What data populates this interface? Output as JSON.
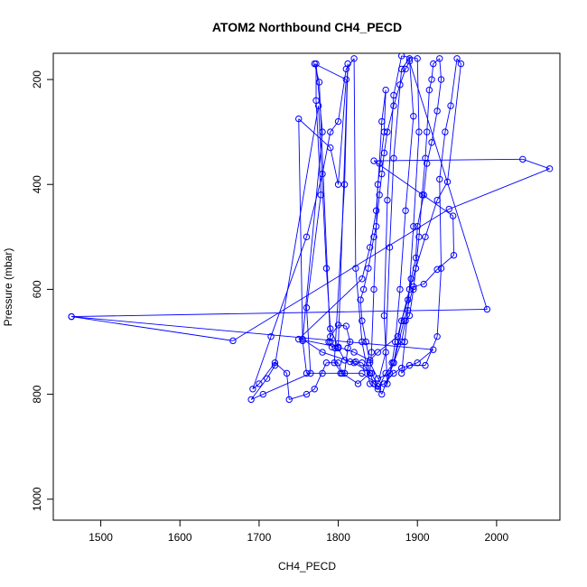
{
  "chart_data": {
    "type": "line",
    "title": "ATOM2 Northbound CH4_PECD",
    "xlabel": "CH4_PECD",
    "ylabel": "Pressure (mbar)",
    "xlim": [
      1440,
      2080
    ],
    "ylim": [
      1040,
      150
    ],
    "y_reversed": true,
    "grid": false,
    "x_ticks": [
      1500,
      1600,
      1700,
      1800,
      1900,
      2000
    ],
    "y_ticks": [
      200,
      400,
      600,
      800,
      1000
    ],
    "line_color": "#0000ff",
    "marker": "open-circle",
    "series": [
      {
        "values": [
          [
            1463,
            652
          ],
          [
            1667,
            698
          ],
          [
            1940,
            447
          ],
          [
            2067,
            370
          ],
          [
            2033,
            352
          ],
          [
            1845,
            355
          ],
          [
            1945,
            460
          ],
          [
            1946,
            535
          ],
          [
            1925,
            562
          ],
          [
            1908,
            590
          ],
          [
            1895,
            595
          ],
          [
            1883,
            660
          ],
          [
            1870,
            740
          ],
          [
            1855,
            800
          ],
          [
            1842,
            760
          ],
          [
            1820,
            740
          ],
          [
            1780,
            720
          ],
          [
            1755,
            695
          ],
          [
            1780,
            300
          ],
          [
            1772,
            170
          ],
          [
            1772,
            240
          ],
          [
            1778,
            420
          ],
          [
            1760,
            635
          ],
          [
            1765,
            760
          ],
          [
            1705,
            800
          ],
          [
            1690,
            810
          ],
          [
            1710,
            770
          ],
          [
            1720,
            745
          ],
          [
            1775,
            250
          ],
          [
            1785,
            560
          ],
          [
            1790,
            675
          ],
          [
            1800,
            710
          ],
          [
            1812,
            170
          ],
          [
            1808,
            400
          ],
          [
            1795,
            740
          ],
          [
            1805,
            760
          ],
          [
            1830,
            760
          ],
          [
            1850,
            780
          ],
          [
            1860,
            720
          ],
          [
            1865,
            520
          ],
          [
            1870,
            350
          ],
          [
            1880,
            180
          ],
          [
            1890,
            160
          ],
          [
            1895,
            270
          ],
          [
            1885,
            450
          ],
          [
            1878,
            600
          ],
          [
            1872,
            700
          ],
          [
            1868,
            740
          ],
          [
            1862,
            780
          ],
          [
            1858,
            650
          ],
          [
            1862,
            430
          ],
          [
            1870,
            230
          ],
          [
            1880,
            155
          ],
          [
            1900,
            160
          ],
          [
            1902,
            300
          ],
          [
            1895,
            480
          ],
          [
            1888,
            640
          ],
          [
            1884,
            700
          ],
          [
            1880,
            760
          ],
          [
            1890,
            745
          ],
          [
            1910,
            745
          ],
          [
            1925,
            690
          ],
          [
            1930,
            560
          ],
          [
            1928,
            390
          ],
          [
            1935,
            300
          ],
          [
            1942,
            250
          ],
          [
            1950,
            160
          ],
          [
            1955,
            170
          ],
          [
            1938,
            395
          ],
          [
            1925,
            430
          ],
          [
            1910,
            500
          ],
          [
            1890,
            600
          ],
          [
            1875,
            690
          ],
          [
            1850,
            720
          ],
          [
            1840,
            735
          ],
          [
            1820,
            720
          ],
          [
            1800,
            710
          ],
          [
            1750,
            695
          ],
          [
            1830,
            580
          ],
          [
            1840,
            520
          ],
          [
            1848,
            450
          ],
          [
            1852,
            360
          ],
          [
            1855,
            280
          ],
          [
            1860,
            220
          ],
          [
            1858,
            300
          ],
          [
            1850,
            400
          ],
          [
            1845,
            600
          ],
          [
            1842,
            720
          ],
          [
            1840,
            760
          ],
          [
            1825,
            780
          ],
          [
            1805,
            760
          ],
          [
            1800,
            740
          ],
          [
            1785,
            740
          ],
          [
            1770,
            790
          ],
          [
            1760,
            800
          ],
          [
            1738,
            810
          ],
          [
            1735,
            760
          ],
          [
            1720,
            740
          ],
          [
            1700,
            780
          ],
          [
            1692,
            790
          ],
          [
            1715,
            690
          ],
          [
            1760,
            500
          ],
          [
            1780,
            380
          ],
          [
            1790,
            300
          ],
          [
            1800,
            280
          ],
          [
            1810,
            180
          ],
          [
            1820,
            160
          ],
          [
            1822,
            560
          ],
          [
            1830,
            700
          ],
          [
            1840,
            780
          ],
          [
            1850,
            790
          ],
          [
            1860,
            760
          ],
          [
            1870,
            740
          ],
          [
            1880,
            700
          ],
          [
            1885,
            660
          ],
          [
            1890,
            650
          ],
          [
            1895,
            600
          ],
          [
            1898,
            560
          ],
          [
            1902,
            500
          ],
          [
            1906,
            420
          ],
          [
            1910,
            350
          ],
          [
            1912,
            300
          ],
          [
            1915,
            220
          ],
          [
            1918,
            200
          ],
          [
            1920,
            170
          ],
          [
            1928,
            160
          ],
          [
            1930,
            200
          ],
          [
            1925,
            260
          ],
          [
            1918,
            320
          ],
          [
            1912,
            360
          ],
          [
            1908,
            420
          ],
          [
            1900,
            480
          ],
          [
            1898,
            540
          ],
          [
            1892,
            580
          ],
          [
            1888,
            620
          ],
          [
            1880,
            660
          ],
          [
            1875,
            700
          ],
          [
            1870,
            740
          ],
          [
            1865,
            760
          ],
          [
            1850,
            770
          ],
          [
            1840,
            740
          ],
          [
            1835,
            700
          ],
          [
            1830,
            660
          ],
          [
            1828,
            620
          ],
          [
            1832,
            600
          ],
          [
            1838,
            560
          ],
          [
            1845,
            500
          ],
          [
            1848,
            480
          ],
          [
            1852,
            420
          ],
          [
            1855,
            380
          ],
          [
            1858,
            340
          ],
          [
            1862,
            300
          ],
          [
            1870,
            250
          ],
          [
            1878,
            210
          ],
          [
            1885,
            180
          ],
          [
            1890,
            165
          ],
          [
            1988,
            638
          ],
          [
            1463,
            652
          ],
          [
            1920,
            715
          ],
          [
            1900,
            740
          ],
          [
            1880,
            750
          ],
          [
            1870,
            760
          ],
          [
            1858,
            780
          ],
          [
            1850,
            785
          ],
          [
            1845,
            780
          ],
          [
            1840,
            760
          ],
          [
            1835,
            750
          ],
          [
            1830,
            740
          ],
          [
            1822,
            738
          ],
          [
            1815,
            738
          ],
          [
            1808,
            735
          ],
          [
            1800,
            712
          ],
          [
            1796,
            712
          ],
          [
            1792,
            710
          ],
          [
            1788,
            700
          ],
          [
            1790,
            690
          ],
          [
            1800,
            668
          ],
          [
            1810,
            670
          ],
          [
            1815,
            700
          ],
          [
            1812,
            712
          ],
          [
            1808,
            760
          ],
          [
            1803,
            760
          ],
          [
            1780,
            760
          ],
          [
            1760,
            760
          ],
          [
            1755,
            698
          ],
          [
            1750,
            275
          ],
          [
            1790,
            330
          ],
          [
            1800,
            400
          ],
          [
            1810,
            200
          ],
          [
            1770,
            170
          ],
          [
            1776,
            205
          ],
          [
            1790,
            700
          ]
        ]
      }
    ]
  }
}
